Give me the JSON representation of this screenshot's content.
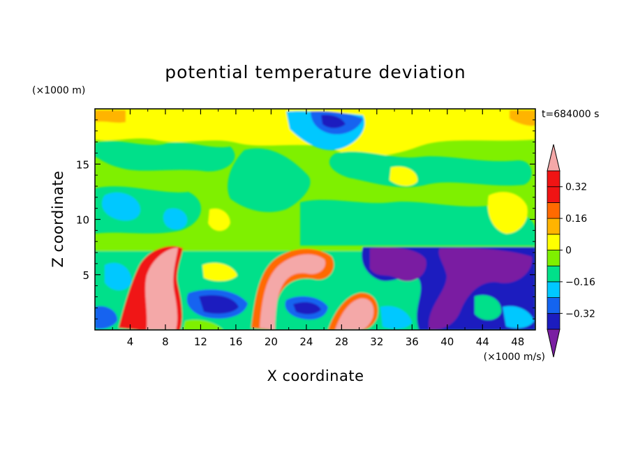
{
  "chart_data": {
    "type": "heatmap",
    "title": "potential temperature deviation",
    "xlabel": "X coordinate",
    "ylabel": "Z coordinate",
    "x_unit": "(×1000 m/s)",
    "y_unit": "(×1000 m)",
    "time_label": "t=684000 s",
    "xlim": [
      0,
      50
    ],
    "ylim": [
      0,
      20
    ],
    "x_ticks": [
      4,
      8,
      12,
      16,
      20,
      24,
      28,
      32,
      36,
      40,
      44,
      48
    ],
    "y_ticks": [
      5,
      10,
      15
    ],
    "colorbar": {
      "levels": [
        -0.4,
        -0.32,
        -0.24,
        -0.16,
        -0.08,
        0,
        0.08,
        0.16,
        0.24,
        0.32,
        0.4
      ],
      "labels": [
        {
          "value": 0.32,
          "text": "0.32"
        },
        {
          "value": 0.16,
          "text": "0.16"
        },
        {
          "value": 0,
          "text": "0"
        },
        {
          "value": -0.16,
          "text": "−0.16"
        },
        {
          "value": -0.32,
          "text": "−0.32"
        }
      ],
      "colors": [
        "#7a1fa2",
        "#1c1cbf",
        "#1464f0",
        "#00c8ff",
        "#00e08a",
        "#7ff000",
        "#ffff00",
        "#ffb400",
        "#ff6a00",
        "#f01414",
        "#f4a8a8"
      ],
      "extend": "both"
    }
  }
}
